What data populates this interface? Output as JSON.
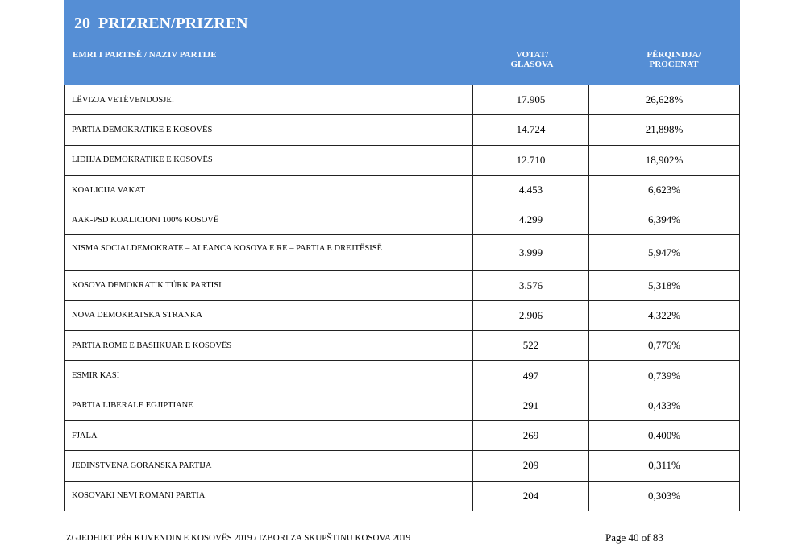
{
  "header": {
    "title": "20  PRIZREN/PRIZREN"
  },
  "table": {
    "columns": [
      "EMRI I PARTISË / NAZIV PARTIJE",
      "VOTAT/ GLASOVA",
      "PËRQINDJA/ PROCENAT"
    ],
    "rows": [
      [
        "LËVIZJA VETËVENDOSJE!",
        "17.905",
        "26,628%"
      ],
      [
        "PARTIA DEMOKRATIKE E KOSOVËS",
        "14.724",
        "21,898%"
      ],
      [
        "LIDHJA DEMOKRATIKE E KOSOVËS",
        "12.710",
        "18,902%"
      ],
      [
        "KOALICIJA VAKAT",
        "4.453",
        "6,623%"
      ],
      [
        "AAK-PSD KOALICIONI 100% KOSOVË",
        "4.299",
        "6,394%"
      ],
      [
        "NISMA SOCIALDEMOKRATE – ALEANCA KOSOVA E RE – PARTIA E DREJTËSISË",
        "3.999",
        "5,947%"
      ],
      [
        "KOSOVA DEMOKRATIK TÜRK PARTISI",
        "3.576",
        "5,318%"
      ],
      [
        "NOVA DEMOKRATSKA STRANKA",
        "2.906",
        "4,322%"
      ],
      [
        "PARTIA ROME E BASHKUAR E KOSOVËS",
        "522",
        "0,776%"
      ],
      [
        "ESMIR KASI",
        "497",
        "0,739%"
      ],
      [
        "PARTIA LIBERALE EGJIPTIANE",
        "291",
        "0,433%"
      ],
      [
        "FJALA",
        "269",
        "0,400%"
      ],
      [
        "JEDINSTVENA GORANSKA PARTIJA",
        "209",
        "0,311%"
      ],
      [
        "KOSOVAKI NEVI ROMANI PARTIA",
        "204",
        "0,303%"
      ]
    ]
  },
  "footer": {
    "text": "ZGJEDHJET PËR KUVENDIN E KOSOVËS 2019 / IZBORI ZA SKUPŠTINU KOSOVA 2019",
    "page": "Page 40 of 83"
  }
}
